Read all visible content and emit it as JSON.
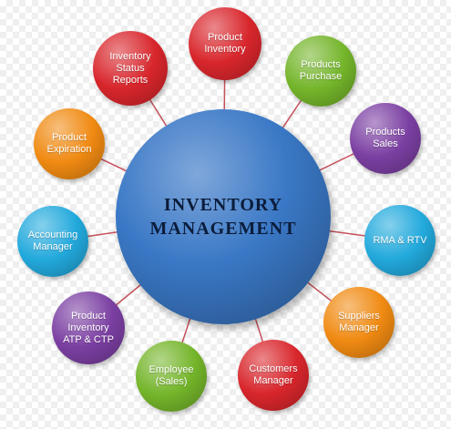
{
  "diagram": {
    "center": {
      "line1": "INVENTORY",
      "line2": "MANAGEMENT",
      "color": "#3a78c6"
    },
    "nodes": [
      {
        "id": "product-inventory",
        "label": "Product\nInventory",
        "color": "#d8262c"
      },
      {
        "id": "products-purchase",
        "label": "Products\nPurchase",
        "color": "#74b52a"
      },
      {
        "id": "products-sales",
        "label": "Products\nSales",
        "color": "#7b3fa2"
      },
      {
        "id": "rma-rtv",
        "label": "RMA & RTV",
        "color": "#22a9dc"
      },
      {
        "id": "suppliers-manager",
        "label": "Suppliers\nManager",
        "color": "#f08a12"
      },
      {
        "id": "customers-manager",
        "label": "Customers\nManager",
        "color": "#d8262c"
      },
      {
        "id": "employee-sales",
        "label": "Employee\n(Sales)",
        "color": "#74b52a"
      },
      {
        "id": "product-inventory-atp-ctp",
        "label": "Product\nInventory\nATP & CTP",
        "color": "#7b3fa2"
      },
      {
        "id": "accounting-manager",
        "label": "Accounting\nManager",
        "color": "#22a9dc"
      },
      {
        "id": "product-expiration",
        "label": "Product\nExpiration",
        "color": "#f08a12"
      },
      {
        "id": "inventory-status-reports",
        "label": "Inventory\nStatus\nReports",
        "color": "#d8262c"
      }
    ],
    "connector_color": "#c4505a"
  }
}
